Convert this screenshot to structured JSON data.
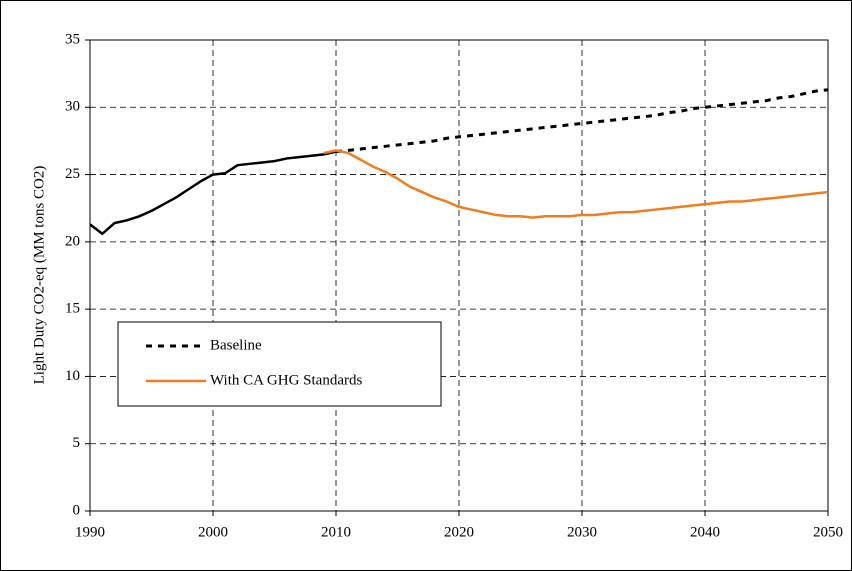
{
  "chart_data": {
    "type": "line",
    "ylabel": "Light Duty CO2-eq (MM tons CO2)",
    "x": [
      1990,
      1991,
      1992,
      1993,
      1994,
      1995,
      1996,
      1997,
      1998,
      1999,
      2000,
      2001,
      2002,
      2003,
      2004,
      2005,
      2006,
      2007,
      2008,
      2009,
      2010,
      2011,
      2012,
      2013,
      2014,
      2015,
      2016,
      2017,
      2018,
      2019,
      2020,
      2021,
      2022,
      2023,
      2024,
      2025,
      2026,
      2027,
      2028,
      2029,
      2030,
      2031,
      2032,
      2033,
      2034,
      2035,
      2036,
      2037,
      2038,
      2039,
      2040,
      2041,
      2042,
      2043,
      2044,
      2045,
      2046,
      2047,
      2048,
      2049,
      2050
    ],
    "series": [
      {
        "color": "#000000",
        "dashed": false,
        "values": [
          21.3,
          20.6,
          21.4,
          21.6,
          21.9,
          22.3,
          22.8,
          23.3,
          23.9,
          24.5,
          25.0,
          25.1,
          25.7,
          25.8,
          25.9,
          26.0,
          26.2,
          26.3,
          26.4,
          26.5,
          26.7,
          null,
          null,
          null,
          null,
          null,
          null,
          null,
          null,
          null,
          null,
          null,
          null,
          null,
          null,
          null,
          null,
          null,
          null,
          null,
          null,
          null,
          null,
          null,
          null,
          null,
          null,
          null,
          null,
          null,
          null,
          null,
          null,
          null,
          null,
          null,
          null,
          null,
          null,
          null,
          null
        ]
      },
      {
        "name": "Baseline",
        "color": "#000000",
        "dashed": true,
        "values": [
          null,
          null,
          null,
          null,
          null,
          null,
          null,
          null,
          null,
          null,
          null,
          null,
          null,
          null,
          null,
          null,
          null,
          null,
          null,
          null,
          26.7,
          26.8,
          26.9,
          27.0,
          27.1,
          27.2,
          27.3,
          27.4,
          27.5,
          27.7,
          27.8,
          27.9,
          28.0,
          28.1,
          28.2,
          28.3,
          28.4,
          28.5,
          28.6,
          28.7,
          28.8,
          28.9,
          29.0,
          29.1,
          29.2,
          29.3,
          29.4,
          29.6,
          29.7,
          29.9,
          30.0,
          30.1,
          30.2,
          30.3,
          30.4,
          30.5,
          30.7,
          30.8,
          31.0,
          31.2,
          31.3
        ]
      },
      {
        "name": "With CA GHG Standards",
        "color": "#f07c1e",
        "dashed": false,
        "values": [
          null,
          null,
          null,
          null,
          null,
          null,
          null,
          null,
          null,
          null,
          null,
          null,
          null,
          null,
          null,
          null,
          null,
          null,
          null,
          26.6,
          26.8,
          26.6,
          26.1,
          25.6,
          25.2,
          24.7,
          24.1,
          23.7,
          23.3,
          23.0,
          22.6,
          22.4,
          22.2,
          22.0,
          21.9,
          21.9,
          21.8,
          21.9,
          21.9,
          21.9,
          22.0,
          22.0,
          22.1,
          22.2,
          22.2,
          22.3,
          22.4,
          22.5,
          22.6,
          22.7,
          22.8,
          22.9,
          23.0,
          23.0,
          23.1,
          23.2,
          23.3,
          23.4,
          23.5,
          23.6,
          23.7
        ]
      }
    ],
    "xlim": [
      1990,
      2050
    ],
    "xticks": [
      1990,
      2000,
      2010,
      2020,
      2030,
      2040,
      2050
    ],
    "ylim": [
      0,
      35
    ],
    "yticks": [
      0,
      5,
      10,
      15,
      20,
      25,
      30,
      35
    ],
    "grid": true
  }
}
